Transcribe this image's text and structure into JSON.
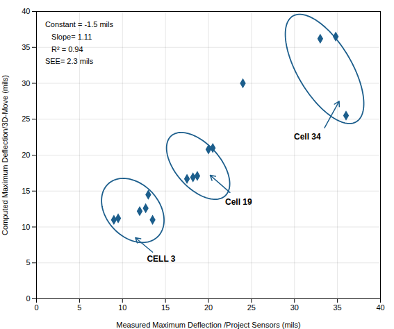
{
  "chart_data": {
    "type": "scatter",
    "xlabel": "Measured Maximum Deflection /Project Sensors (mils)",
    "ylabel": "Computed Maximum Deflection/3D-Move (mils)",
    "xlim": [
      0,
      40
    ],
    "ylim": [
      0,
      40
    ],
    "xticks": [
      0,
      5,
      10,
      15,
      20,
      25,
      30,
      35,
      40
    ],
    "yticks": [
      0,
      5,
      10,
      15,
      20,
      25,
      30,
      35,
      40
    ],
    "grid": true,
    "color": "#1C5E8C",
    "marker": "diamond",
    "annotation": {
      "text": "Constant = -1.5 mils\n   Slope= 1.11\n   R² = 0.94\nSEE= 2.3 mils",
      "x": 1.0,
      "y": 39.0
    },
    "groups": [
      {
        "label": "CELL 3",
        "points": [
          [
            9.0,
            11.0
          ],
          [
            9.5,
            11.2
          ],
          [
            12.0,
            12.2
          ],
          [
            12.7,
            12.6
          ],
          [
            13.0,
            14.5
          ],
          [
            13.5,
            11.0
          ]
        ],
        "ellipse": {
          "x": 11.2,
          "y": 12.3,
          "width": 6.5,
          "height": 9.5,
          "angle": 28
        },
        "label_x": 14.5,
        "label_y": 5.5,
        "arrow_start": [
          13.5,
          6.5
        ],
        "arrow_end": [
          11.5,
          8.5
        ]
      },
      {
        "label": "Cell 19",
        "points": [
          [
            17.5,
            16.7
          ],
          [
            18.2,
            16.9
          ],
          [
            18.7,
            17.1
          ],
          [
            20.0,
            20.8
          ],
          [
            20.5,
            21.0
          ]
        ],
        "ellipse": {
          "x": 18.8,
          "y": 18.5,
          "width": 5.5,
          "height": 10.5,
          "angle": 33
        },
        "label_x": 23.5,
        "label_y": 13.5,
        "arrow_start": [
          22.5,
          14.8
        ],
        "arrow_end": [
          20.2,
          17.2
        ]
      },
      {
        "label": "Cell 34",
        "points": [
          [
            24.0,
            30.0
          ],
          [
            33.0,
            36.2
          ],
          [
            34.8,
            36.5
          ],
          [
            36.0,
            25.5
          ]
        ],
        "ellipse": {
          "x": 33.5,
          "y": 32.0,
          "width": 6.5,
          "height": 16.5,
          "angle": 25
        },
        "label_x": 31.5,
        "label_y": 22.5,
        "arrow_start": [
          33.5,
          23.8
        ],
        "arrow_end": [
          35.2,
          27.5
        ]
      }
    ]
  }
}
